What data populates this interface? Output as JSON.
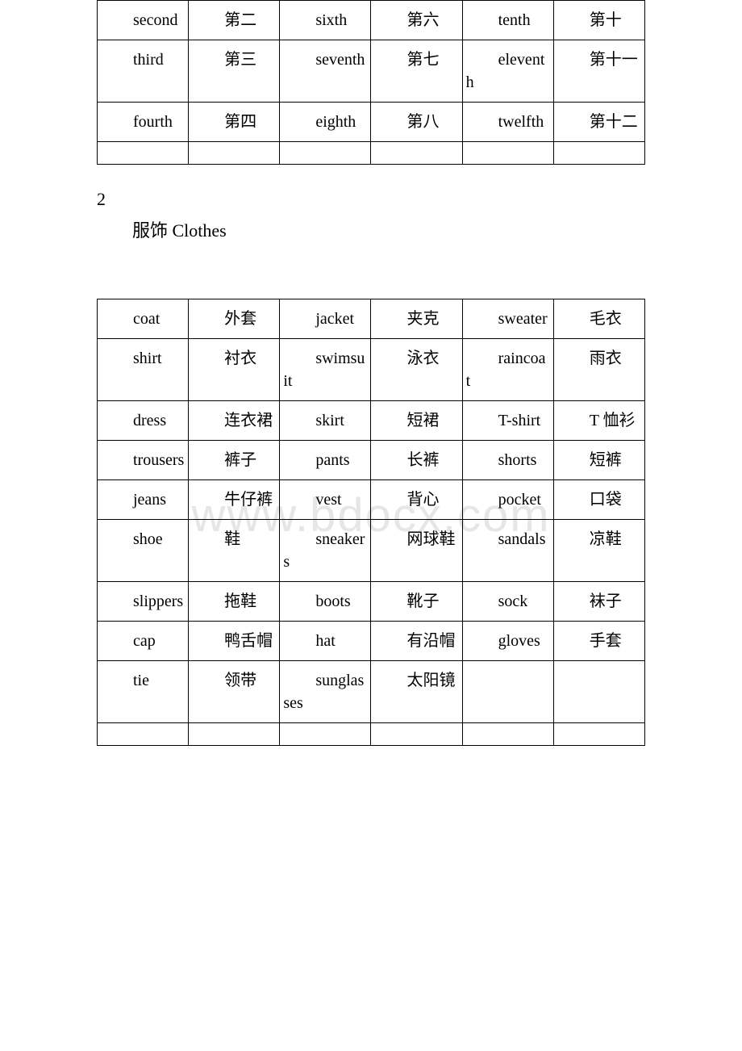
{
  "watermark": "www.bdocx.com",
  "table1": {
    "columns": 6,
    "rows": [
      [
        "second",
        "第二",
        "sixth",
        "第六",
        "tenth",
        "第十"
      ],
      [
        "third",
        "第三",
        "seventh",
        "第七",
        "eleventh",
        "第十一"
      ],
      [
        "fourth",
        "第四",
        "eighth",
        "第八",
        "twelfth",
        "第十二"
      ]
    ]
  },
  "section": {
    "number": "2",
    "title": "服饰 Clothes"
  },
  "table2": {
    "columns": 6,
    "rows": [
      [
        "coat",
        "外套",
        "jacket",
        "夹克",
        "sweater",
        "毛衣"
      ],
      [
        "shirt",
        "衬衣",
        "swimsuit",
        "泳衣",
        "raincoat",
        "雨衣"
      ],
      [
        "dress",
        "连衣裙",
        "skirt",
        "短裙",
        "T-shirt",
        "T 恤衫"
      ],
      [
        "trousers",
        "裤子",
        "pants",
        "长裤",
        "shorts",
        "短裤"
      ],
      [
        "jeans",
        "牛仔裤",
        "vest",
        "背心",
        "pocket",
        "口袋"
      ],
      [
        "shoe",
        "鞋",
        "sneakers",
        "网球鞋",
        "sandals",
        "凉鞋"
      ],
      [
        "slippers",
        "拖鞋",
        "boots",
        "靴子",
        "sock",
        "袜子"
      ],
      [
        "cap",
        "鸭舌帽",
        "hat",
        "有沿帽",
        "gloves",
        "手套"
      ],
      [
        "tie",
        "领带",
        "sunglasses",
        "太阳镜",
        "",
        ""
      ]
    ]
  }
}
